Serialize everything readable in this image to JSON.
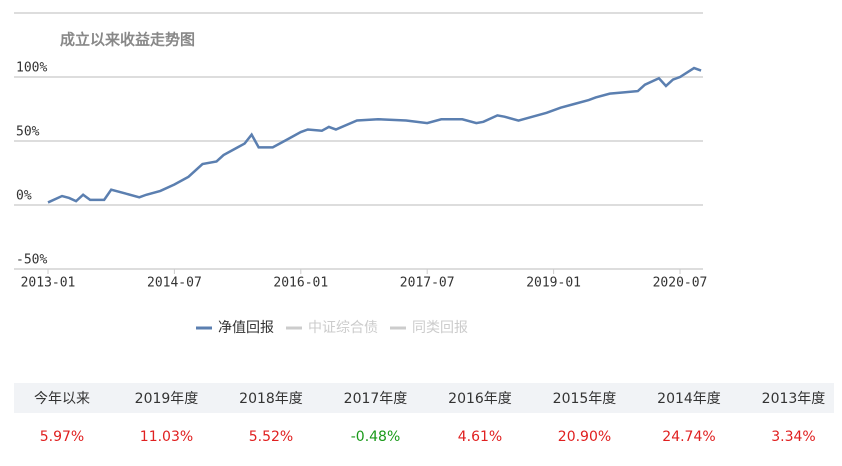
{
  "chart_data": {
    "type": "line",
    "title": "成立以来收益走势图",
    "x": [
      "2013-01",
      "2013-03",
      "2013-04",
      "2013-05",
      "2013-06",
      "2013-07",
      "2013-09",
      "2013-10",
      "2013-12",
      "2014-02",
      "2014-03",
      "2014-05",
      "2014-07",
      "2014-09",
      "2014-11",
      "2015-01",
      "2015-02",
      "2015-04",
      "2015-05",
      "2015-06",
      "2015-07",
      "2015-09",
      "2015-11",
      "2016-01",
      "2016-02",
      "2016-04",
      "2016-05",
      "2016-06",
      "2016-09",
      "2016-12",
      "2017-04",
      "2017-07",
      "2017-09",
      "2017-12",
      "2018-02",
      "2018-03",
      "2018-05",
      "2018-06",
      "2018-08",
      "2018-10",
      "2018-12",
      "2019-02",
      "2019-04",
      "2019-06",
      "2019-07",
      "2019-09",
      "2019-11",
      "2020-01",
      "2020-02",
      "2020-04",
      "2020-05",
      "2020-06",
      "2020-07",
      "2020-09",
      "2020-10"
    ],
    "series": [
      {
        "name": "净值回报",
        "color": "#5b7fb0",
        "values": [
          2,
          7,
          5.5,
          3,
          8,
          4,
          4,
          12,
          9,
          6,
          8,
          11,
          16,
          22,
          32,
          34,
          39,
          45,
          48,
          55,
          45,
          45,
          51,
          57,
          59,
          58,
          61,
          59,
          66,
          67,
          66,
          64,
          67,
          67,
          64,
          65,
          70,
          69,
          66,
          69,
          72,
          76,
          79,
          82,
          84,
          87,
          88,
          89,
          94,
          99,
          93,
          98,
          100,
          107,
          105
        ]
      }
    ],
    "legend": [
      {
        "name": "净值回报",
        "color": "#5b7fb0"
      },
      {
        "name": "中证综合债",
        "color": "#cccccc"
      },
      {
        "name": "同类回报",
        "color": "#cccccc"
      }
    ],
    "xticks": [
      "2013-01",
      "2014-07",
      "2016-01",
      "2017-07",
      "2019-01",
      "2020-07"
    ],
    "ylim": [
      -50,
      150
    ],
    "yticks": [
      {
        "value": -50,
        "label": "-50%"
      },
      {
        "value": 0,
        "label": "0%"
      },
      {
        "value": 50,
        "label": "50%"
      },
      {
        "value": 100,
        "label": "100%"
      }
    ],
    "grid": true
  },
  "table": {
    "header": [
      "今年以来",
      "2019年度",
      "2018年度",
      "2017年度",
      "2016年度",
      "2015年度",
      "2014年度",
      "2013年度"
    ],
    "values": [
      "5.97%",
      "11.03%",
      "5.52%",
      "-0.48%",
      "4.61%",
      "20.90%",
      "24.74%",
      "3.34%"
    ],
    "value_colors": [
      "#e02020",
      "#e02020",
      "#e02020",
      "#1a9a1a",
      "#e02020",
      "#e02020",
      "#e02020",
      "#e02020"
    ]
  }
}
